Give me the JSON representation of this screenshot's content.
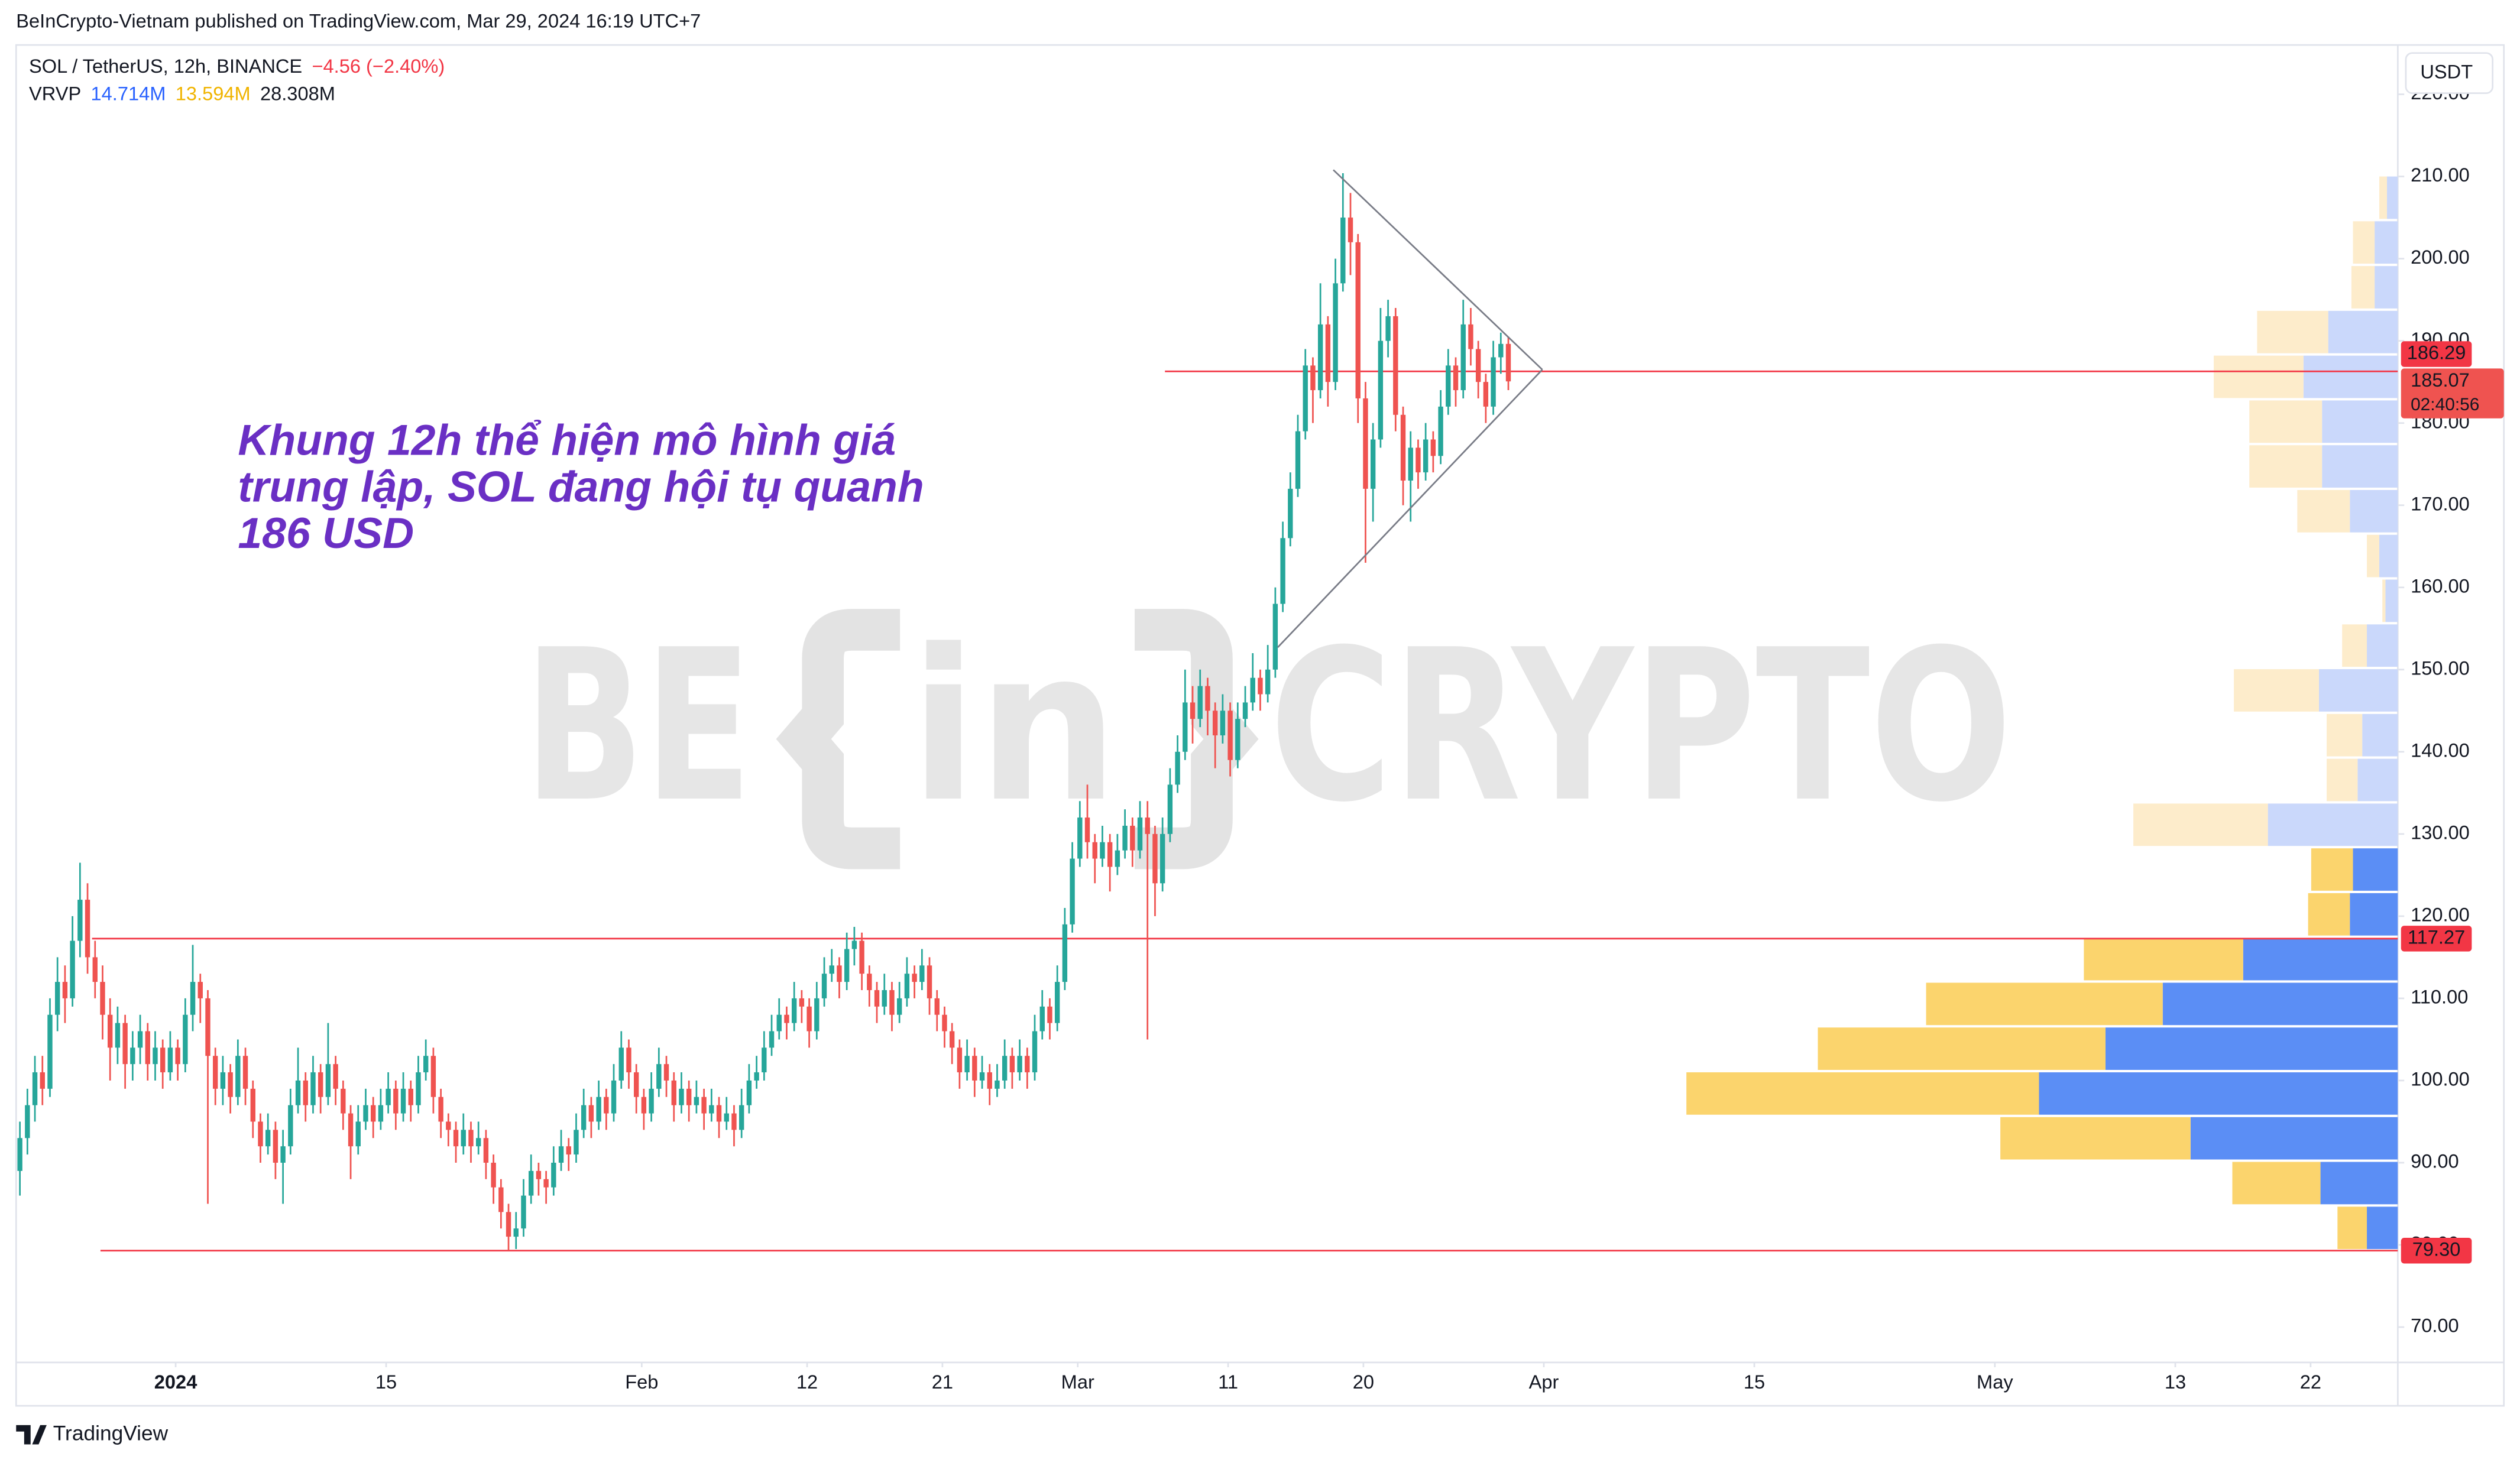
{
  "header": {
    "published": "BeInCrypto-Vietnam published on TradingView.com, Mar 29, 2024 16:19 UTC+7"
  },
  "chart_data": {
    "type": "candlestick",
    "symbol": "SOL / TetherUS, 12h, BINANCE",
    "change_text": "−4.56 (−2.40%)",
    "currency": "USDT",
    "annotation": [
      "Khung 12h thể hiện mô hình giá",
      "trung lập, SOL đang hội tụ quanh",
      "186 USD"
    ],
    "watermark": [
      "BE",
      "in",
      "CRYPTO"
    ],
    "up_color": "#26a69a",
    "down_color": "#ef5350",
    "candles": [
      [
        89,
        95,
        86,
        93
      ],
      [
        93,
        99,
        91,
        97
      ],
      [
        97,
        103,
        95,
        101
      ],
      [
        101,
        103,
        97,
        99
      ],
      [
        99,
        110,
        98,
        108
      ],
      [
        108,
        115,
        106,
        112
      ],
      [
        112,
        114,
        107,
        110
      ],
      [
        110,
        120,
        109,
        117
      ],
      [
        117,
        126.5,
        115,
        122
      ],
      [
        122,
        124,
        113,
        115
      ],
      [
        115,
        117,
        110,
        112
      ],
      [
        112,
        114,
        105,
        108
      ],
      [
        108,
        110,
        100,
        104
      ],
      [
        104,
        109,
        102,
        107
      ],
      [
        107,
        108,
        99,
        102
      ],
      [
        102,
        106,
        100,
        104
      ],
      [
        104,
        108,
        102,
        106
      ],
      [
        106,
        107,
        100,
        102
      ],
      [
        102,
        106,
        100,
        104
      ],
      [
        104,
        105,
        99,
        101
      ],
      [
        101,
        106,
        100,
        104
      ],
      [
        104,
        105,
        100,
        102
      ],
      [
        102,
        110,
        101,
        108
      ],
      [
        108,
        116.5,
        106,
        112
      ],
      [
        112,
        113,
        107,
        110
      ],
      [
        110,
        111,
        85,
        103
      ],
      [
        103,
        104,
        97,
        99
      ],
      [
        99,
        103,
        97,
        101
      ],
      [
        101,
        102,
        96,
        98
      ],
      [
        98,
        105,
        97,
        103
      ],
      [
        103,
        104,
        97,
        99
      ],
      [
        99,
        100,
        93,
        95
      ],
      [
        95,
        96,
        90,
        92
      ],
      [
        92,
        96,
        91,
        94
      ],
      [
        94,
        95,
        88,
        90
      ],
      [
        90,
        94,
        85,
        92
      ],
      [
        92,
        99,
        91,
        97
      ],
      [
        97,
        104,
        96,
        100
      ],
      [
        100,
        101,
        95,
        97
      ],
      [
        97,
        103,
        96,
        101
      ],
      [
        101,
        102,
        96,
        98
      ],
      [
        98,
        107,
        97,
        102
      ],
      [
        102,
        103,
        97,
        99
      ],
      [
        99,
        100,
        94,
        96
      ],
      [
        96,
        97,
        88,
        92
      ],
      [
        92,
        97,
        91,
        95
      ],
      [
        95,
        99,
        94,
        97
      ],
      [
        97,
        98,
        93,
        95
      ],
      [
        95,
        99,
        94,
        97
      ],
      [
        97,
        101,
        96,
        99
      ],
      [
        99,
        100,
        94,
        96
      ],
      [
        96,
        101,
        95,
        99
      ],
      [
        99,
        100,
        95,
        97
      ],
      [
        97,
        103,
        96,
        101
      ],
      [
        101,
        105,
        100,
        103
      ],
      [
        103,
        104,
        96,
        98
      ],
      [
        98,
        99,
        93,
        95
      ],
      [
        95,
        96,
        92,
        94
      ],
      [
        94,
        95,
        90,
        92
      ],
      [
        92,
        96,
        91,
        94
      ],
      [
        94,
        95,
        90,
        92
      ],
      [
        92,
        95,
        91,
        93
      ],
      [
        93,
        94,
        88,
        90
      ],
      [
        90,
        91,
        85,
        87
      ],
      [
        87,
        88,
        82,
        84
      ],
      [
        84,
        85,
        79.3,
        81
      ],
      [
        81,
        84,
        79.5,
        82
      ],
      [
        82,
        88,
        81,
        86
      ],
      [
        86,
        91,
        85,
        89
      ],
      [
        89,
        90,
        86,
        88
      ],
      [
        88,
        89,
        85,
        87
      ],
      [
        87,
        92,
        86,
        90
      ],
      [
        90,
        94,
        89,
        92
      ],
      [
        92,
        93,
        89,
        91
      ],
      [
        91,
        96,
        90,
        94
      ],
      [
        94,
        99,
        93,
        97
      ],
      [
        97,
        98,
        93,
        95
      ],
      [
        95,
        100,
        94,
        98
      ],
      [
        98,
        99,
        94,
        96
      ],
      [
        96,
        102,
        95,
        100
      ],
      [
        100,
        106,
        99,
        104
      ],
      [
        104,
        105,
        99,
        101
      ],
      [
        101,
        102,
        96,
        98
      ],
      [
        98,
        99,
        94,
        96
      ],
      [
        96,
        101,
        95,
        99
      ],
      [
        99,
        104,
        98,
        102
      ],
      [
        102,
        103,
        98,
        100
      ],
      [
        100,
        101,
        95,
        97
      ],
      [
        97,
        101,
        96,
        99
      ],
      [
        99,
        100,
        95,
        97
      ],
      [
        97,
        100,
        96,
        98
      ],
      [
        98,
        99,
        94,
        96
      ],
      [
        96,
        99,
        95,
        97
      ],
      [
        97,
        98,
        93,
        95
      ],
      [
        95,
        98,
        94,
        96
      ],
      [
        96,
        97,
        92,
        94
      ],
      [
        94,
        99,
        93,
        97
      ],
      [
        97,
        102,
        96,
        100
      ],
      [
        100,
        103,
        99,
        101
      ],
      [
        101,
        106,
        100,
        104
      ],
      [
        104,
        108,
        103,
        106
      ],
      [
        106,
        110,
        105,
        108
      ],
      [
        108,
        109,
        105,
        107
      ],
      [
        107,
        112,
        106,
        110
      ],
      [
        110,
        111,
        107,
        109
      ],
      [
        109,
        110,
        104,
        106
      ],
      [
        106,
        112,
        105,
        110
      ],
      [
        110,
        115,
        109,
        113
      ],
      [
        113,
        116,
        112,
        114
      ],
      [
        114,
        115,
        110,
        112
      ],
      [
        112,
        118,
        111,
        116
      ],
      [
        116,
        118.7,
        114,
        117
      ],
      [
        117,
        118,
        111,
        113
      ],
      [
        113,
        114,
        109,
        111
      ],
      [
        111,
        112,
        107,
        109
      ],
      [
        109,
        113,
        108,
        111
      ],
      [
        111,
        112,
        106,
        108
      ],
      [
        108,
        112,
        107,
        110
      ],
      [
        110,
        115,
        109,
        113
      ],
      [
        113,
        114,
        110,
        112
      ],
      [
        112,
        116,
        111,
        114
      ],
      [
        114,
        115,
        108,
        110
      ],
      [
        110,
        111,
        106,
        108
      ],
      [
        108,
        109,
        104,
        106
      ],
      [
        106,
        107,
        102,
        104
      ],
      [
        104,
        105,
        99,
        101
      ],
      [
        101,
        105,
        100,
        103
      ],
      [
        103,
        104,
        98,
        100
      ],
      [
        100,
        103,
        99,
        101
      ],
      [
        101,
        102,
        97,
        99
      ],
      [
        99,
        102,
        98,
        100
      ],
      [
        100,
        105,
        99,
        103
      ],
      [
        103,
        104,
        99,
        101
      ],
      [
        101,
        105,
        100,
        103
      ],
      [
        103,
        104,
        99,
        101
      ],
      [
        101,
        108,
        100,
        106
      ],
      [
        106,
        111,
        105,
        109
      ],
      [
        109,
        110,
        105,
        107
      ],
      [
        107,
        114,
        106,
        112
      ],
      [
        112,
        121,
        111,
        119
      ],
      [
        119,
        129,
        118,
        127
      ],
      [
        127,
        134,
        126,
        132
      ],
      [
        132,
        136,
        127,
        129
      ],
      [
        129,
        130,
        124,
        127
      ],
      [
        127,
        131,
        126,
        129
      ],
      [
        129,
        130,
        123,
        126
      ],
      [
        126,
        130,
        125,
        128
      ],
      [
        128,
        133,
        127,
        131
      ],
      [
        131,
        132,
        126,
        128
      ],
      [
        128,
        134,
        127,
        132
      ],
      [
        132,
        134,
        105,
        130
      ],
      [
        130,
        131,
        120,
        124
      ],
      [
        124,
        132,
        123,
        130
      ],
      [
        130,
        138,
        129,
        136
      ],
      [
        136,
        142,
        135,
        140
      ],
      [
        140,
        150,
        139,
        146
      ],
      [
        146,
        148,
        141,
        144
      ],
      [
        144,
        150,
        143,
        148
      ],
      [
        148,
        149,
        142,
        145
      ],
      [
        145,
        146,
        138,
        142
      ],
      [
        142,
        147,
        141,
        145
      ],
      [
        145,
        146,
        137,
        139
      ],
      [
        139,
        146,
        138,
        144
      ],
      [
        144,
        148,
        143,
        146
      ],
      [
        146,
        152,
        145,
        149
      ],
      [
        149,
        150,
        145,
        147
      ],
      [
        147,
        153,
        146,
        150
      ],
      [
        150,
        160,
        149,
        158
      ],
      [
        158,
        168,
        157,
        166
      ],
      [
        166,
        174,
        165,
        172
      ],
      [
        172,
        181,
        171,
        179
      ],
      [
        179,
        189,
        178,
        187
      ],
      [
        187,
        188,
        180,
        184
      ],
      [
        184,
        197,
        183,
        192
      ],
      [
        192,
        193,
        182,
        185
      ],
      [
        185,
        200,
        184,
        197
      ],
      [
        197,
        210.4,
        196,
        205
      ],
      [
        205,
        208,
        198,
        202
      ],
      [
        202,
        203,
        180,
        183
      ],
      [
        183,
        185,
        163,
        172
      ],
      [
        172,
        180,
        168,
        178
      ],
      [
        178,
        194,
        177,
        190
      ],
      [
        190,
        195,
        188,
        193
      ],
      [
        193,
        194,
        179,
        181
      ],
      [
        181,
        182,
        170,
        173
      ],
      [
        173,
        179,
        168,
        177
      ],
      [
        177,
        178,
        172,
        174
      ],
      [
        174,
        180,
        173,
        178
      ],
      [
        178,
        179,
        174,
        176
      ],
      [
        176,
        184,
        175,
        182
      ],
      [
        182,
        189,
        181,
        187
      ],
      [
        187,
        188,
        182,
        184
      ],
      [
        184,
        195,
        183,
        192
      ],
      [
        192,
        194,
        187,
        189
      ],
      [
        189,
        190,
        183,
        185
      ],
      [
        185,
        186,
        180,
        182
      ],
      [
        182,
        190,
        181,
        188
      ],
      [
        188,
        191,
        186,
        189.63
      ],
      [
        189.63,
        190.5,
        184,
        185.07
      ]
    ],
    "xlim": [
      -10.61,
      147.8
    ],
    "xticks": [
      {
        "value": 0,
        "label": "2024"
      },
      {
        "value": 14,
        "label": "15"
      },
      {
        "value": 31,
        "label": "Feb"
      },
      {
        "value": 42,
        "label": "12"
      },
      {
        "value": 51,
        "label": "21"
      },
      {
        "value": 60,
        "label": "Mar"
      },
      {
        "value": 70,
        "label": "11"
      },
      {
        "value": 79,
        "label": "20"
      },
      {
        "value": 91,
        "label": "Apr"
      },
      {
        "value": 105,
        "label": "15"
      },
      {
        "value": 121,
        "label": "May"
      },
      {
        "value": 133,
        "label": "13"
      },
      {
        "value": 142,
        "label": "22"
      }
    ],
    "ylim": [
      65.7,
      226
    ],
    "yticks": [
      {
        "value": 70,
        "label": "70.00"
      },
      {
        "value": 80,
        "label": "80.00"
      },
      {
        "value": 90,
        "label": "90.00"
      },
      {
        "value": 100,
        "label": "100.00"
      },
      {
        "value": 110,
        "label": "110.00"
      },
      {
        "value": 120,
        "label": "120.00"
      },
      {
        "value": 130,
        "label": "130.00"
      },
      {
        "value": 140,
        "label": "140.00"
      },
      {
        "value": 150,
        "label": "150.00"
      },
      {
        "value": 160,
        "label": "160.00"
      },
      {
        "value": 170,
        "label": "170.00"
      },
      {
        "value": 180,
        "label": "180.00"
      },
      {
        "value": 190,
        "label": "190.00"
      },
      {
        "value": 200,
        "label": "200.00"
      },
      {
        "value": 210,
        "label": "210.00"
      },
      {
        "value": 220,
        "label": "220.00"
      }
    ],
    "last_price": 185.07,
    "countdown": "02:40:56",
    "hline_color": "#f23645",
    "hlines": [
      {
        "price": 186.29,
        "from": 65.8
      },
      {
        "price": 117.27,
        "from": -5.56
      },
      {
        "price": {
          "value": 79.3,
          "label": "79.30"
        },
        "from": -5
      }
    ],
    "trendline_color": "#787b86",
    "trendlines": [
      [
        [
          77,
          210.8
        ],
        [
          90.9,
          186.5
        ]
      ],
      [
        [
          73.3,
          152.7
        ],
        [
          90.9,
          186.5
        ]
      ]
    ],
    "profile": {
      "name": "VRVP",
      "up_total": "14.714M",
      "down_total": "13.594M",
      "total": "28.308M",
      "bins": [
        79.2,
        84.65,
        90.1,
        95.55,
        101.0,
        106.45,
        111.9,
        117.35,
        122.8,
        128.25,
        133.7,
        139.15,
        144.6,
        150.05,
        155.5,
        160.95,
        166.4,
        171.85,
        177.3,
        182.75,
        188.2,
        193.65,
        199.1,
        204.55,
        210.0
      ],
      "up": [
        0.2,
        0.5,
        1.34,
        2.32,
        1.89,
        1.52,
        1.0,
        0.31,
        0.29,
        0.84,
        0.26,
        0.23,
        0.51,
        0.2,
        0.08,
        0.12,
        0.31,
        0.49,
        0.49,
        0.61,
        0.45,
        0.15,
        0.15,
        0.07
      ],
      "down": [
        0.19,
        0.57,
        1.23,
        2.28,
        1.86,
        1.53,
        1.03,
        0.27,
        0.27,
        0.87,
        0.2,
        0.23,
        0.55,
        0.16,
        0.02,
        0.08,
        0.34,
        0.47,
        0.47,
        0.58,
        0.46,
        0.15,
        0.14,
        0.05
      ],
      "xlim": [
        0,
        15.4
      ],
      "value_area": [
        79.2,
        128.25
      ],
      "up_color": "#5b8ef5",
      "down_color": "#fbd46d",
      "up_color_light": "#cad8fb",
      "down_color_light": "#fdeccb"
    }
  },
  "footer": "TradingView"
}
